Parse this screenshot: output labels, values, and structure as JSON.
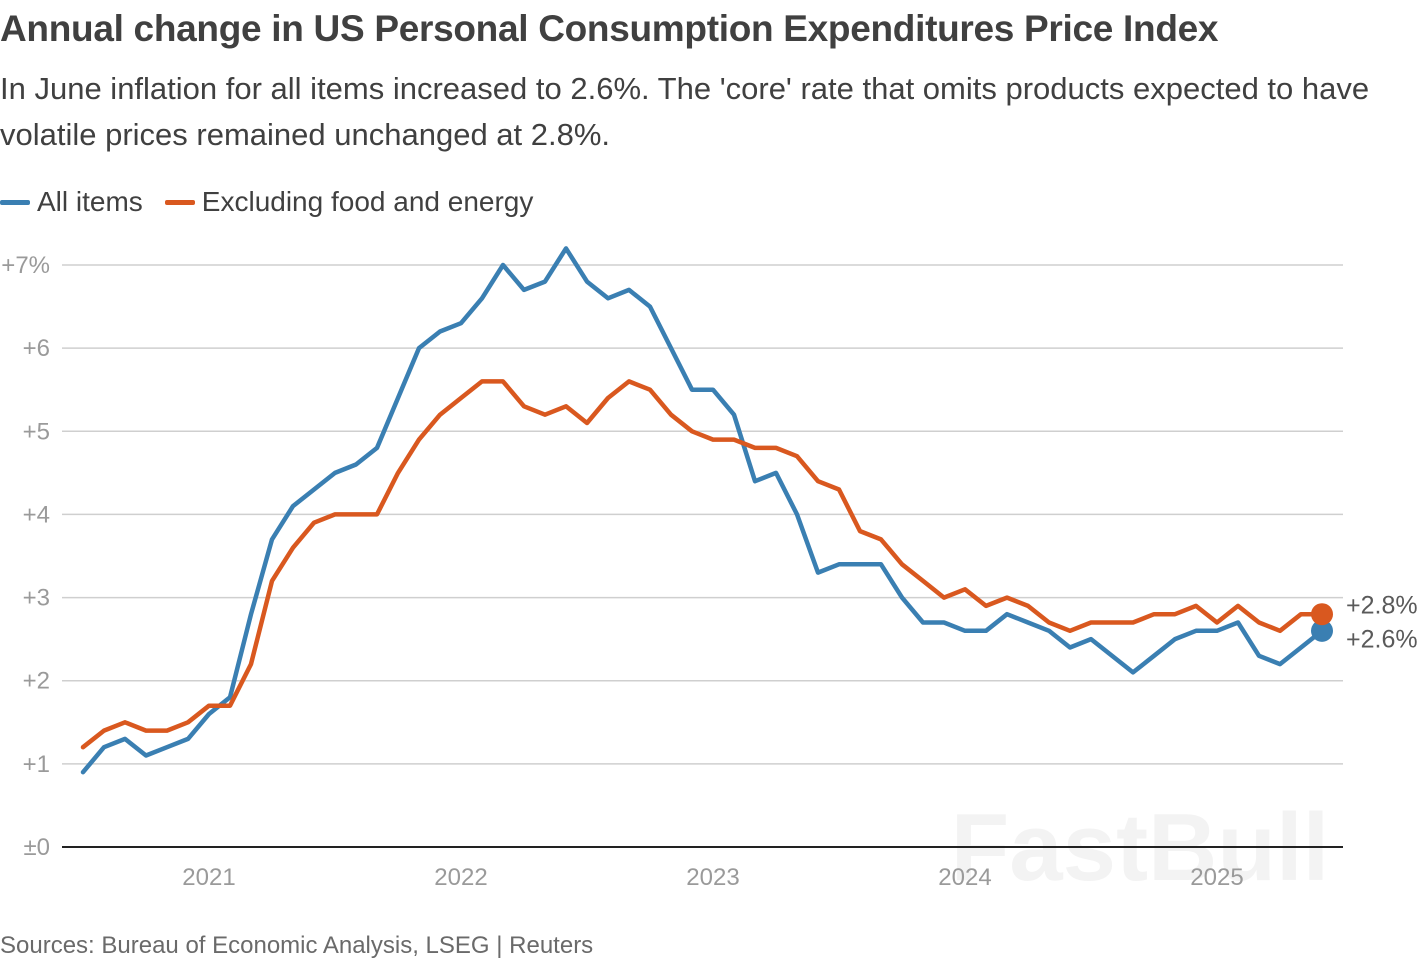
{
  "title": "Annual change in US Personal Consumption Expenditures Price Index",
  "subtitle": "In June inflation for all items increased to 2.6%. The 'core' rate that omits products expected to have volatile prices remained unchanged at 2.8%.",
  "source": "Sources: Bureau of Economic Analysis, LSEG | Reuters",
  "watermark": "FastBull",
  "colors": {
    "all_items": "#3a7fb2",
    "core": "#d9581f",
    "grid": "#cfcfcf",
    "baseline": "#222222",
    "tick_text": "#9a9a9a"
  },
  "legend": [
    {
      "label": "All items",
      "color": "#3a7fb2"
    },
    {
      "label": "Excluding food and energy",
      "color": "#d9581f"
    }
  ],
  "chart_data": {
    "type": "line",
    "x_range": [
      "2020-07",
      "2025-06"
    ],
    "x_ticks": [
      {
        "label": "2021",
        "date": "2021-01"
      },
      {
        "label": "2022",
        "date": "2022-01"
      },
      {
        "label": "2023",
        "date": "2023-01"
      },
      {
        "label": "2024",
        "date": "2024-01"
      },
      {
        "label": "2025",
        "date": "2025-01"
      }
    ],
    "ylim": [
      0,
      7
    ],
    "y_ticks": [
      {
        "value": 7,
        "label": "+7%"
      },
      {
        "value": 6,
        "label": "+6"
      },
      {
        "value": 5,
        "label": "+5"
      },
      {
        "value": 4,
        "label": "+4"
      },
      {
        "value": 3,
        "label": "+3"
      },
      {
        "value": 2,
        "label": "+2"
      },
      {
        "value": 1,
        "label": "+1"
      },
      {
        "value": 0,
        "label": "±0"
      }
    ],
    "grid": true,
    "legend_position": "top-left",
    "series": [
      {
        "name": "All items",
        "color": "#3a7fb2",
        "start": "2020-07",
        "end_label": "+2.6%",
        "values": [
          0.9,
          1.2,
          1.3,
          1.1,
          1.2,
          1.3,
          1.6,
          1.8,
          2.8,
          3.7,
          4.1,
          4.3,
          4.5,
          4.6,
          4.8,
          5.4,
          6.0,
          6.2,
          6.3,
          6.6,
          7.0,
          6.7,
          6.8,
          7.2,
          6.8,
          6.6,
          6.7,
          6.5,
          6.0,
          5.5,
          5.5,
          5.2,
          4.4,
          4.5,
          4.0,
          3.3,
          3.4,
          3.4,
          3.4,
          3.0,
          2.7,
          2.7,
          2.6,
          2.6,
          2.8,
          2.7,
          2.6,
          2.4,
          2.5,
          2.3,
          2.1,
          2.3,
          2.5,
          2.6,
          2.6,
          2.7,
          2.3,
          2.2,
          2.4,
          2.6
        ]
      },
      {
        "name": "Excluding food and energy",
        "color": "#d9581f",
        "start": "2020-07",
        "end_label": "+2.8%",
        "values": [
          1.2,
          1.4,
          1.5,
          1.4,
          1.4,
          1.5,
          1.7,
          1.7,
          2.2,
          3.2,
          3.6,
          3.9,
          4.0,
          4.0,
          4.0,
          4.5,
          4.9,
          5.2,
          5.4,
          5.6,
          5.6,
          5.3,
          5.2,
          5.3,
          5.1,
          5.4,
          5.6,
          5.5,
          5.2,
          5.0,
          4.9,
          4.9,
          4.8,
          4.8,
          4.7,
          4.4,
          4.3,
          3.8,
          3.7,
          3.4,
          3.2,
          3.0,
          3.1,
          2.9,
          3.0,
          2.9,
          2.7,
          2.6,
          2.7,
          2.7,
          2.7,
          2.8,
          2.8,
          2.9,
          2.7,
          2.9,
          2.7,
          2.6,
          2.8,
          2.8
        ]
      }
    ]
  }
}
